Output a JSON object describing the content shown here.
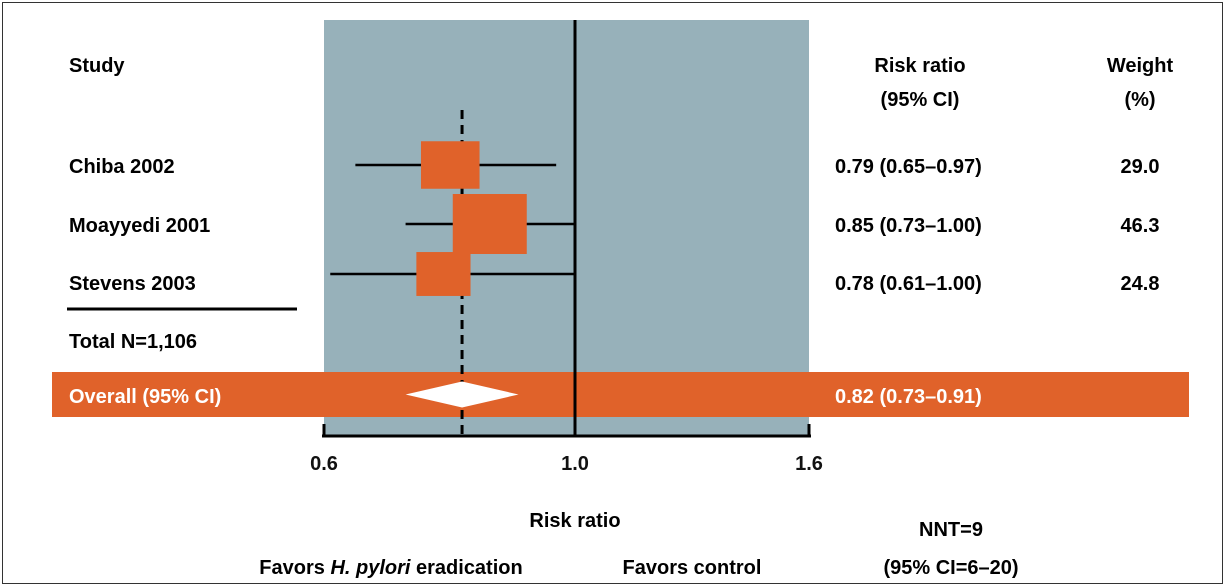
{
  "chart_data": {
    "type": "forest",
    "headers": {
      "study": "Study",
      "ratio_line1": "Risk ratio",
      "ratio_line2": "(95% CI)",
      "weight_line1": "Weight",
      "weight_line2": "(%)"
    },
    "studies": [
      {
        "name": "Chiba 2002",
        "rr": 0.79,
        "lo": 0.65,
        "hi": 0.97,
        "rr_text": "0.79 (0.65–0.97)",
        "weight": 29.0,
        "weight_text": "29.0"
      },
      {
        "name": "Moayyedi 2001",
        "rr": 0.85,
        "lo": 0.73,
        "hi": 1.0,
        "rr_text": "0.85 (0.73–1.00)",
        "weight": 46.3,
        "weight_text": "46.3"
      },
      {
        "name": "Stevens 2003",
        "rr": 0.78,
        "lo": 0.61,
        "hi": 1.0,
        "rr_text": "0.78 (0.61–1.00)",
        "weight": 24.8,
        "weight_text": "24.8"
      }
    ],
    "total_label": "Total N=1,106",
    "overall": {
      "label": "Overall (95% CI)",
      "rr": 0.82,
      "lo": 0.73,
      "hi": 0.91,
      "rr_text": "0.82 (0.73–0.91)"
    },
    "x_axis": {
      "min": 0.6,
      "max": 1.6,
      "ticks": [
        0.6,
        1.0,
        1.6
      ],
      "tick_labels": [
        "0.6",
        "1.0",
        "1.6"
      ],
      "label": "Risk ratio",
      "reference": 1.0
    },
    "favors_left_pre": "Favors ",
    "favors_left_italic": "H. pylori",
    "favors_left_post": " eradication",
    "favors_right": "Favors control",
    "nnt_line1": "NNT=9",
    "nnt_line2": "(95% CI=6–20)",
    "colors": {
      "panel": "#97b1ba",
      "marker": "#e0622a",
      "band": "#e0622a",
      "band_text": "#ffffff",
      "diamond": "#ffffff",
      "line": "#000000"
    }
  }
}
